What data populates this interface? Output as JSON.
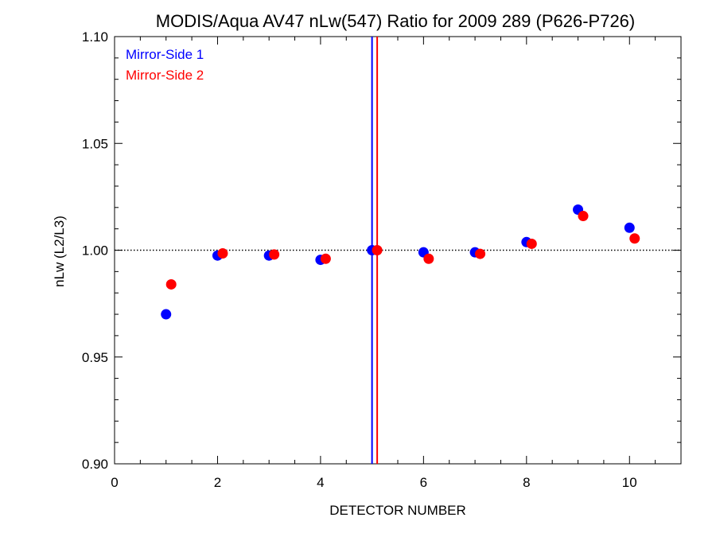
{
  "chart_data": {
    "type": "scatter",
    "title": "MODIS/Aqua AV47 nLw(547) Ratio for 2009 289 (P626-P726)",
    "xlabel": "DETECTOR NUMBER",
    "ylabel": "nLw (L2/L3)",
    "xlim": [
      0,
      11
    ],
    "ylim": [
      0.9,
      1.1
    ],
    "xticks": [
      0,
      2,
      4,
      6,
      8,
      10
    ],
    "xtick_labels": [
      "0",
      "2",
      "4",
      "6",
      "8",
      "10"
    ],
    "yticks": [
      0.9,
      0.95,
      1.0,
      1.05,
      1.1
    ],
    "ytick_labels": [
      "0.90",
      "0.95",
      "1.00",
      "1.05",
      "1.10"
    ],
    "reference_line": 1.0,
    "vertical_lines": [
      {
        "x": 5.0,
        "color": "#0000ff"
      },
      {
        "x": 5.1,
        "color": "#ff0000"
      }
    ],
    "legend_position": "top-left",
    "grid": false,
    "series": [
      {
        "name": "Mirror-Side 1",
        "color": "#0000ff",
        "x": [
          1,
          2,
          3,
          4,
          5,
          6,
          7,
          8,
          9,
          10
        ],
        "y": [
          0.97,
          0.9975,
          0.9975,
          0.9955,
          1.0,
          0.999,
          0.999,
          1.0038,
          1.019,
          1.0105
        ]
      },
      {
        "name": "Mirror-Side 2",
        "color": "#ff0000",
        "x": [
          1.1,
          2.1,
          3.1,
          4.1,
          5.1,
          6.1,
          7.1,
          8.1,
          9.1,
          10.1
        ],
        "y": [
          0.984,
          0.9985,
          0.998,
          0.996,
          1.0,
          0.996,
          0.9983,
          1.003,
          1.016,
          1.0055
        ]
      }
    ]
  }
}
